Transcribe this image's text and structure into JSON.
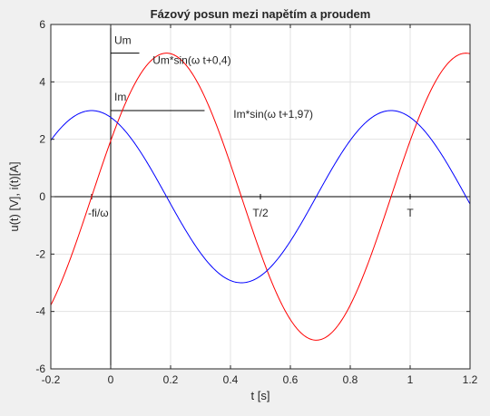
{
  "chart_data": {
    "type": "line",
    "title": "Fázový posun mezi napětím a proudem",
    "xlabel": "t [s]",
    "ylabel": "u(t) [V], i(t)[A]",
    "xlim": [
      -0.2,
      1.2
    ],
    "ylim": [
      -6,
      6
    ],
    "xticks": [
      -0.2,
      0,
      0.2,
      0.4,
      0.6,
      0.8,
      1,
      1.2
    ],
    "xtick_labels": [
      "-0.2",
      "0",
      "0.2",
      "0.4",
      "0.6",
      "0.8",
      "1",
      "1.2"
    ],
    "yticks": [
      -6,
      -4,
      -2,
      0,
      2,
      4,
      6
    ],
    "ytick_labels": [
      "-6",
      "-4",
      "-2",
      "0",
      "2",
      "4",
      "6"
    ],
    "grid": true,
    "series": [
      {
        "name": "Um*sin(ω t+0,4)",
        "color": "#ff0000",
        "amplitude": 5,
        "omega": 6.2832,
        "phase": 0.4
      },
      {
        "name": "Im*sin(ω t+1,97)",
        "color": "#0000ff",
        "amplitude": 3,
        "omega": 6.2832,
        "phase": 1.97
      }
    ],
    "annotations": {
      "um": "Um",
      "im": "Im",
      "fi": "-fi/ω",
      "half_period": "T/2",
      "period": "T"
    },
    "reference_lines": {
      "x_axis_y": 0,
      "y_axis_x": 0,
      "um_level": 5,
      "im_level": 3,
      "um_peak_x": 0.0955,
      "im_peak_x": 0.3135
    },
    "period_marks": [
      0.5,
      1.0
    ],
    "fi_x": -0.0637
  }
}
